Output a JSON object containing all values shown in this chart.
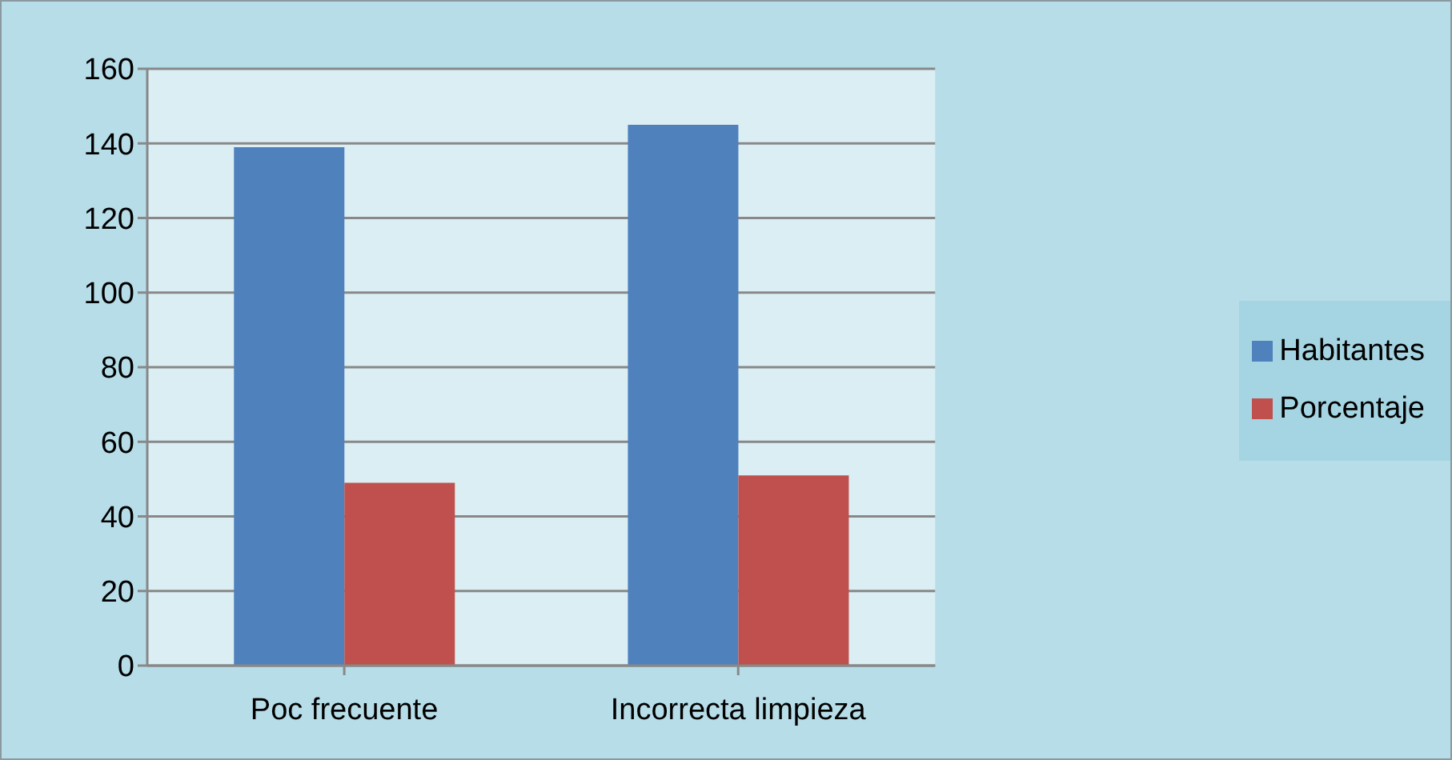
{
  "chart_data": {
    "type": "bar",
    "categories": [
      "Poc frecuente",
      "Incorrecta limpieza"
    ],
    "series": [
      {
        "name": "Habitantes",
        "color": "#4f81bd",
        "values": [
          139,
          145
        ]
      },
      {
        "name": "Porcentaje",
        "color": "#c0504d",
        "values": [
          49,
          51
        ]
      }
    ],
    "ylim": [
      0,
      160
    ],
    "yticks": [
      0,
      20,
      40,
      60,
      80,
      100,
      120,
      140,
      160
    ],
    "grid": "y",
    "legend": "right"
  }
}
